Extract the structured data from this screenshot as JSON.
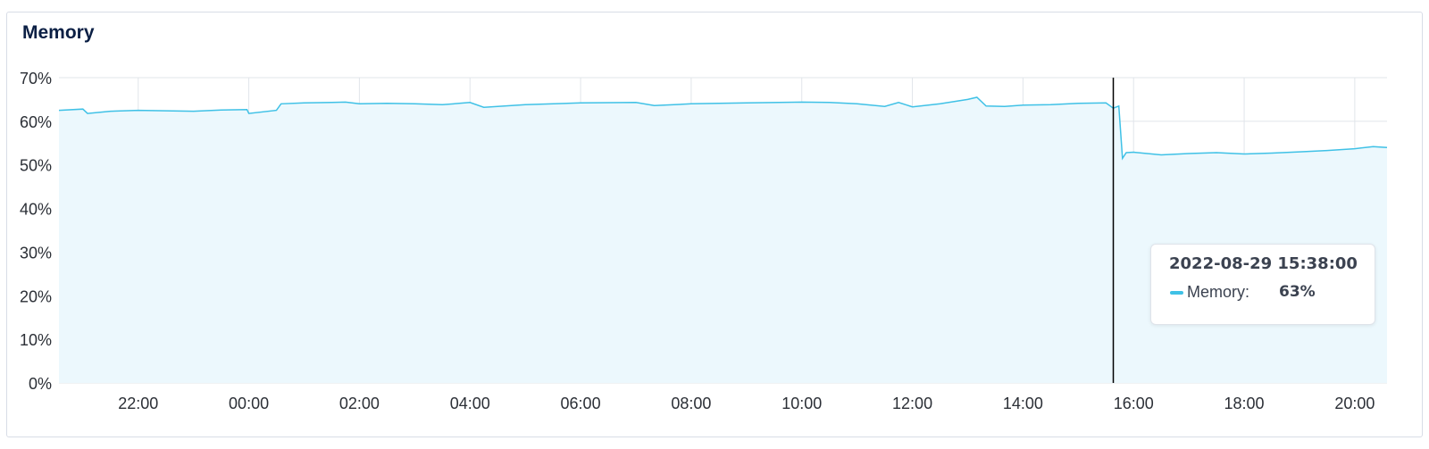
{
  "panel": {
    "title": "Memory"
  },
  "colors": {
    "line": "#3fc1e6",
    "fill": "#ecf8fd",
    "grid": "#e1e5ea",
    "cursor": "#000000",
    "text": "#2b2f36"
  },
  "tooltip": {
    "timestamp": "2022-08-29 15:38:00",
    "series_label": "Memory:",
    "value": "63%"
  },
  "chart_data": {
    "type": "area",
    "x_start": "2022-08-28 20:34",
    "x_end": "2022-08-29 20:35",
    "cursor_x": "2022-08-29 15:38",
    "ylim": [
      0,
      70
    ],
    "y_ticks": [
      "0%",
      "10%",
      "20%",
      "30%",
      "40%",
      "50%",
      "60%",
      "70%"
    ],
    "y_tick_values": [
      0,
      10,
      20,
      30,
      40,
      50,
      60,
      70
    ],
    "x_ticks": [
      "22:00",
      "00:00",
      "02:00",
      "04:00",
      "06:00",
      "08:00",
      "10:00",
      "12:00",
      "14:00",
      "16:00",
      "18:00",
      "20:00"
    ],
    "x_tick_values": [
      "2022-08-28 22:00",
      "2022-08-29 00:00",
      "2022-08-29 02:00",
      "2022-08-29 04:00",
      "2022-08-29 06:00",
      "2022-08-29 08:00",
      "2022-08-29 10:00",
      "2022-08-29 12:00",
      "2022-08-29 14:00",
      "2022-08-29 16:00",
      "2022-08-29 18:00",
      "2022-08-29 20:00"
    ],
    "grid": true,
    "series": [
      {
        "name": "Memory",
        "x": [
          "2022-08-28 20:34",
          "2022-08-28 21:00",
          "2022-08-28 21:05",
          "2022-08-28 21:30",
          "2022-08-28 22:00",
          "2022-08-28 22:30",
          "2022-08-28 23:00",
          "2022-08-28 23:30",
          "2022-08-28 23:58",
          "2022-08-29 00:00",
          "2022-08-29 00:30",
          "2022-08-29 00:35",
          "2022-08-29 01:00",
          "2022-08-29 01:30",
          "2022-08-29 01:45",
          "2022-08-29 02:00",
          "2022-08-29 02:30",
          "2022-08-29 03:00",
          "2022-08-29 03:30",
          "2022-08-29 04:00",
          "2022-08-29 04:15",
          "2022-08-29 05:00",
          "2022-08-29 06:00",
          "2022-08-29 07:00",
          "2022-08-29 07:20",
          "2022-08-29 08:00",
          "2022-08-29 09:00",
          "2022-08-29 10:00",
          "2022-08-29 10:30",
          "2022-08-29 11:00",
          "2022-08-29 11:30",
          "2022-08-29 11:45",
          "2022-08-29 12:00",
          "2022-08-29 12:30",
          "2022-08-29 13:00",
          "2022-08-29 13:10",
          "2022-08-29 13:20",
          "2022-08-29 13:40",
          "2022-08-29 14:00",
          "2022-08-29 14:30",
          "2022-08-29 15:00",
          "2022-08-29 15:30",
          "2022-08-29 15:38",
          "2022-08-29 15:44",
          "2022-08-29 15:48",
          "2022-08-29 15:52",
          "2022-08-29 16:00",
          "2022-08-29 16:30",
          "2022-08-29 17:00",
          "2022-08-29 17:30",
          "2022-08-29 18:00",
          "2022-08-29 18:30",
          "2022-08-29 19:00",
          "2022-08-29 19:30",
          "2022-08-29 20:00",
          "2022-08-29 20:20",
          "2022-08-29 20:35"
        ],
        "values": [
          62.5,
          62.8,
          61.8,
          62.3,
          62.5,
          62.4,
          62.3,
          62.6,
          62.7,
          61.8,
          62.5,
          64.0,
          64.2,
          64.3,
          64.4,
          64.0,
          64.1,
          64.0,
          63.8,
          64.3,
          63.2,
          63.8,
          64.2,
          64.3,
          63.6,
          64.0,
          64.2,
          64.4,
          64.3,
          64.0,
          63.4,
          64.3,
          63.3,
          64.0,
          65.0,
          65.5,
          63.5,
          63.4,
          63.7,
          63.8,
          64.1,
          64.2,
          63.0,
          63.5,
          51.5,
          52.8,
          52.9,
          52.3,
          52.6,
          52.8,
          52.5,
          52.7,
          53.0,
          53.3,
          53.7,
          54.2,
          54.0
        ]
      }
    ]
  }
}
